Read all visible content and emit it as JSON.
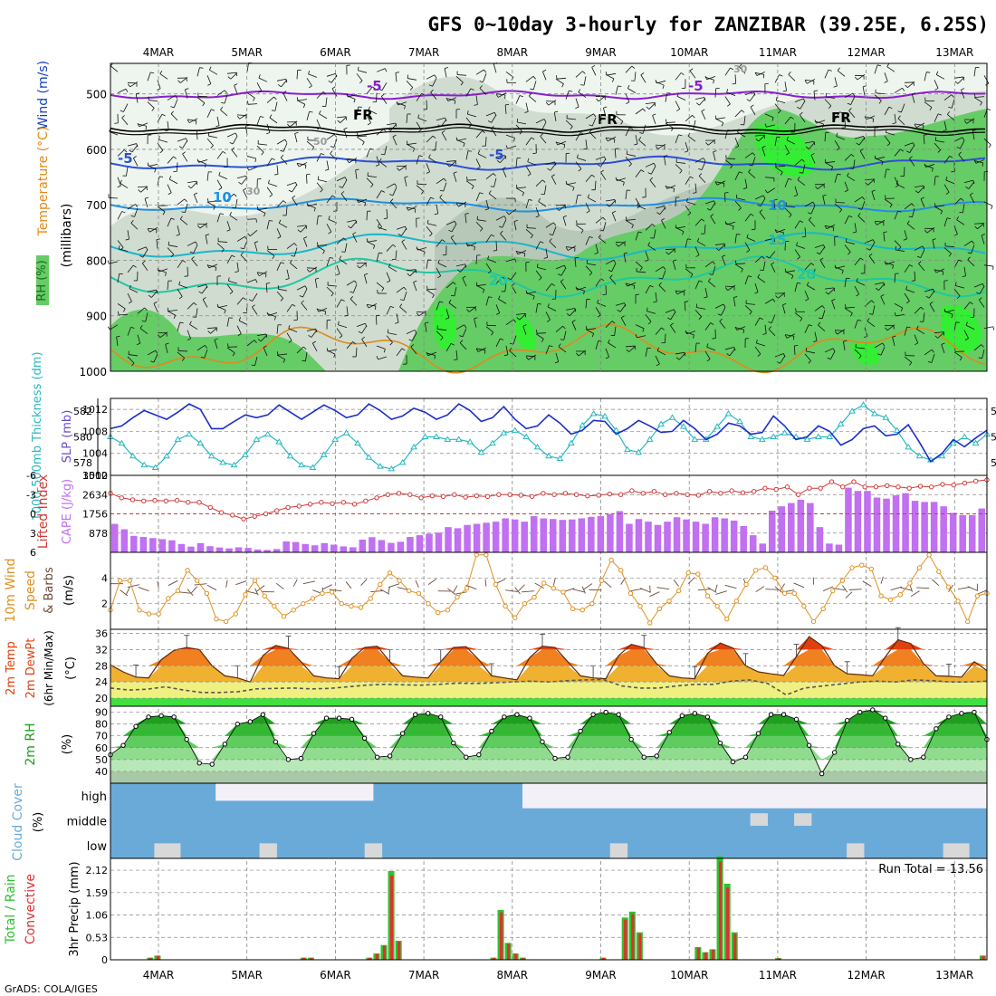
{
  "header": {
    "title": "GFS 0~10day 3-hourly for ZANZIBAR (39.25E, 6.25S)",
    "credit": "GrADS: COLA/IGES"
  },
  "colors": {
    "background": "#ffffff",
    "frame": "#000000",
    "grid": "#888888",
    "rh_light": "#eef5ee",
    "rh_mid": "#d0dcd0",
    "rh_dark": "#b8c8b8",
    "rh_green": "#66cc66",
    "rh_bright": "#33ee33",
    "temp_minus5": "#8a1ecf",
    "temp_fr": "#000000",
    "temp_cold": "#2b4fd6",
    "temp_10": "#1f8fe0",
    "temp_15": "#19b7c8",
    "temp_20": "#1fc8a0",
    "temp_warm": "#e08a1a",
    "slp": "#1b2fc8",
    "thickness": "#28b8c0",
    "cape": "#c070f0",
    "lifted": "#d23a3a",
    "wind10": "#e09020",
    "barb": "#6a4a3a",
    "t2m_hot": "#e04010",
    "t2m_warm": "#f08020",
    "t2m_mild": "#f0b030",
    "t2m_yellow": "#f0f080",
    "t2m_green": "#40e040",
    "dewpt": "#555555",
    "rh2m_dark": "#1aa01a",
    "rh2m_light": "#9fe09f",
    "rh2m_base": "#a8c8a8",
    "cloud": "#6aaad8",
    "cloud_light": "#d8d8d8",
    "cloud_bg": "#f4f0f8",
    "precip_total": "#30c030",
    "precip_conv": "#e03030"
  },
  "x_axis": {
    "dates": [
      "4MAR",
      "5MAR",
      "6MAR",
      "7MAR",
      "8MAR",
      "9MAR",
      "10MAR",
      "11MAR",
      "12MAR",
      "13MAR"
    ]
  },
  "panels": {
    "upper_air": {
      "labels": [
        "RH (%)",
        "Temperature (°C)",
        "Wind (m/s)"
      ],
      "ylabel": "(millibars)",
      "yticks": [
        "500",
        "600",
        "700",
        "800",
        "900",
        "1000"
      ],
      "contour_labels": [
        "-5",
        "-5",
        "FR",
        "FR",
        "FR",
        "-5",
        "-5",
        "10",
        "10",
        "15",
        "20",
        "20",
        "30",
        "30",
        "50"
      ]
    },
    "pressure": {
      "left_label": "1000-500mb Thickness (dm)",
      "right_label": "SLP (mb)",
      "left_ticks": [
        "582",
        "580",
        "578"
      ],
      "right_ticks": [
        "1012",
        "1008",
        "1004",
        "1000"
      ]
    },
    "instability": {
      "left_label": "Lifted Index",
      "right_label": "CAPE (J/kg)",
      "left_ticks": [
        "-6",
        "-3",
        "0",
        "3",
        "6"
      ],
      "right_ticks": [
        "3512",
        "2634",
        "1756",
        "878"
      ]
    },
    "wind10m": {
      "labels": [
        "10m Wind",
        "Speed",
        "& Barbs"
      ],
      "ylabel": "(m/s)",
      "yticks": [
        "4",
        "2"
      ]
    },
    "temperature": {
      "labels": [
        "2m Temp",
        "2m DewPt",
        "(6hr Min/Max)"
      ],
      "ylabel": "(°C)",
      "yticks": [
        "36",
        "32",
        "28",
        "24",
        "20"
      ]
    },
    "humidity": {
      "label": "2m RH",
      "ylabel": "(%)",
      "yticks": [
        "90",
        "80",
        "70",
        "60",
        "50",
        "40"
      ]
    },
    "cloud": {
      "label": "Cloud Cover",
      "ylabel": "(%)",
      "levels": [
        "high",
        "middle",
        "low"
      ]
    },
    "precip": {
      "labels": [
        "Total / Rain",
        "Convective"
      ],
      "ylabel": "3hr Precip (mm)",
      "yticks": [
        "2.12",
        "1.59",
        "1.06",
        "0.53",
        "0"
      ],
      "run_total": "Run Total = 13.56"
    }
  },
  "chart_data": [
    {
      "type": "line",
      "name": "slp",
      "ylim": [
        1000,
        1014
      ],
      "values": [
        1008.5,
        1009.0,
        1010.5,
        1011.8,
        1011.0,
        1010.2,
        1011.5,
        1013.0,
        1012.0,
        1008.5,
        1008.5,
        1009.8,
        1011.0,
        1010.5,
        1011.0,
        1012.8,
        1011.5,
        1010.2,
        1011.5,
        1012.8,
        1011.8,
        1010.5,
        1011.0,
        1013.0,
        1011.8,
        1010.2,
        1010.8,
        1012.2,
        1011.5,
        1010.2,
        1011.0,
        1013.0,
        1011.8,
        1009.8,
        1010.5,
        1012.5,
        1010.2,
        1008.5,
        1009.0,
        1011.0,
        1009.5,
        1007.5,
        1008.2,
        1010.0,
        1009.8,
        1007.5,
        1008.5,
        1010.0,
        1009.0,
        1007.8,
        1008.0,
        1010.0,
        1008.5,
        1006.5,
        1007.5,
        1009.5,
        1009.0,
        1007.5,
        1007.8,
        1010.8,
        1009.0,
        1006.5,
        1007.0,
        1009.0,
        1008.0,
        1005.5,
        1006.5,
        1008.5,
        1009.0,
        1007.2,
        1007.5,
        1009.2,
        1006.0,
        1002.5,
        1004.0,
        1006.5,
        1005.2,
        1006.8,
        1008.2
      ],
      "ylabel": "SLP (mb)"
    },
    {
      "type": "line",
      "name": "thickness",
      "ylim": [
        577,
        583
      ],
      "values": [
        580.0,
        579.5,
        578.5,
        577.8,
        577.6,
        578.5,
        579.8,
        580.2,
        579.5,
        578.5,
        578.0,
        577.8,
        578.6,
        579.8,
        580.2,
        579.6,
        578.5,
        577.8,
        577.6,
        578.6,
        579.8,
        580.3,
        579.5,
        578.4,
        577.7,
        577.5,
        578.0,
        579.2,
        580.0,
        580.0,
        579.8,
        579.8,
        579.6,
        578.8,
        579.5,
        580.3,
        580.5,
        580.0,
        579.2,
        578.5,
        578.3,
        579.5,
        580.9,
        581.8,
        581.6,
        580.5,
        579.0,
        578.8,
        579.8,
        581.0,
        581.5,
        580.8,
        579.8,
        579.8,
        580.8,
        581.8,
        581.2,
        580.0,
        579.8,
        580.0,
        580.3,
        580.0,
        579.8,
        580.0,
        580.0,
        581.0,
        582.0,
        582.5,
        581.8,
        581.5,
        580.5,
        579.2,
        578.5,
        578.2,
        578.5,
        579.5,
        580.0,
        579.5,
        580.2
      ]
    },
    {
      "type": "bar",
      "name": "cape",
      "ylim": [
        0,
        3512
      ],
      "values": [
        1300,
        1050,
        750,
        700,
        650,
        600,
        550,
        380,
        260,
        420,
        280,
        220,
        180,
        230,
        200,
        130,
        110,
        150,
        500,
        470,
        380,
        320,
        420,
        350,
        270,
        230,
        580,
        690,
        560,
        430,
        480,
        700,
        780,
        850,
        900,
        1150,
        1100,
        1250,
        1300,
        1350,
        1400,
        1550,
        1500,
        1400,
        1650,
        1550,
        1520,
        1480,
        1500,
        1550,
        1620,
        1650,
        1750,
        1880,
        1300,
        1520,
        1400,
        1250,
        1400,
        1600,
        1500,
        1400,
        1300,
        1600,
        1550,
        1450,
        1200,
        780,
        400,
        1900,
        2100,
        2250,
        2400,
        2250,
        1150,
        400,
        350,
        2950,
        2800,
        2800,
        2500,
        2450,
        2600,
        2700,
        2350,
        2300,
        2300,
        2100,
        1800,
        1700,
        1700,
        2000
      ]
    },
    {
      "type": "line",
      "name": "lifted_index",
      "ylim": [
        -6,
        6
      ],
      "values": [
        -3.2,
        -2.5,
        -2.2,
        -2.0,
        -2.1,
        -2.0,
        -2.1,
        -1.8,
        -1.8,
        -1.0,
        -0.2,
        0.2,
        0.8,
        0.4,
        0.0,
        -0.5,
        -1.0,
        -1.2,
        -1.5,
        -1.8,
        -1.6,
        -1.8,
        -1.5,
        -2.0,
        -2.5,
        -3.0,
        -3.2,
        -3.0,
        -2.5,
        -2.8,
        -2.7,
        -3.0,
        -2.6,
        -2.8,
        -2.7,
        -3.0,
        -3.0,
        -2.9,
        -2.7,
        -3.2,
        -3.0,
        -3.2,
        -3.0,
        -2.8,
        -2.9,
        -3.1,
        -3.0,
        -3.6,
        -3.2,
        -3.5,
        -3.0,
        -3.2,
        -3.0,
        -2.9,
        -3.5,
        -3.2,
        -3.6,
        -3.3,
        -3.5,
        -4.0,
        -3.8,
        -4.2,
        -3.0,
        -4.0,
        -4.0,
        -5.0,
        -4.2,
        -5.0,
        -4.2,
        -4.2,
        -4.4,
        -4.2,
        -4.0,
        -4.3,
        -4.2,
        -4.6,
        -4.5,
        -4.8,
        -5.1,
        -5.3
      ]
    },
    {
      "type": "line",
      "name": "wind10m_speed",
      "ylim": [
        0,
        6
      ],
      "values": [
        1.5,
        3.8,
        3.8,
        1.5,
        1.2,
        1.2,
        2.4,
        3.0,
        4.6,
        3.8,
        2.8,
        0.8,
        0.6,
        1.2,
        2.7,
        3.8,
        2.6,
        1.8,
        1.0,
        1.5,
        2.0,
        2.4,
        2.8,
        2.9,
        2.0,
        1.8,
        1.7,
        2.4,
        3.5,
        4.4,
        3.8,
        3.0,
        2.8,
        2.0,
        1.3,
        1.5,
        2.5,
        3.2,
        5.8,
        5.8,
        3.5,
        1.8,
        0.9,
        2.0,
        2.5,
        3.6,
        3.2,
        2.9,
        1.6,
        1.5,
        2.0,
        3.8,
        5.4,
        4.6,
        2.8,
        1.8,
        0.5,
        1.6,
        2.2,
        3.0,
        4.4,
        4.3,
        2.6,
        1.8,
        0.8,
        2.2,
        3.5,
        4.6,
        4.8,
        4.0,
        2.8,
        2.8,
        1.8,
        0.6,
        1.6,
        3.0,
        3.8,
        4.8,
        5.0,
        4.7,
        2.6,
        2.3,
        2.7,
        3.6,
        4.8,
        5.8,
        4.5,
        3.3,
        2.2,
        0.6,
        2.6,
        2.8
      ]
    },
    {
      "type": "area",
      "name": "t2m",
      "ylim": [
        18,
        37
      ],
      "values": [
        28.2,
        26.5,
        25.2,
        25.0,
        29.5,
        31.8,
        32.5,
        32.0,
        28.0,
        25.5,
        25.0,
        24.0,
        30.5,
        33.0,
        32.3,
        29.0,
        25.5,
        25.0,
        24.8,
        29.8,
        32.5,
        32.8,
        29.0,
        25.5,
        25.2,
        25.0,
        29.0,
        32.5,
        32.7,
        29.5,
        25.5,
        25.0,
        24.5,
        30.0,
        32.8,
        32.5,
        29.0,
        25.5,
        25.0,
        24.8,
        30.5,
        33.3,
        32.5,
        28.5,
        25.5,
        25.0,
        24.8,
        31.0,
        33.6,
        32.4,
        28.0,
        26.5,
        26.0,
        25.6,
        30.3,
        35.2,
        33.0,
        28.0,
        26.0,
        25.8,
        25.5,
        30.2,
        34.4,
        33.5,
        28.5,
        25.5,
        25.4,
        25.2,
        29.0,
        26.8
      ]
    },
    {
      "type": "line",
      "name": "dewpoint_2m",
      "ylim": [
        18,
        37
      ],
      "values": [
        22.5,
        22.0,
        22.2,
        22.8,
        22.0,
        21.4,
        21.4,
        21.6,
        22.3,
        22.4,
        22.5,
        22.3,
        22.4,
        22.8,
        23.2,
        23.4,
        23.3,
        23.2,
        23.4,
        23.7,
        23.6,
        23.8,
        24.0,
        24.2,
        24.0,
        24.3,
        24.5,
        24.6,
        23.0,
        22.5,
        22.5,
        23.0,
        23.4,
        23.4,
        24.2,
        24.5,
        23.6,
        20.8,
        22.5,
        23.0,
        23.5,
        24.0,
        24.2,
        24.0,
        24.5,
        24.3,
        24.0,
        24.0,
        24.2
      ]
    },
    {
      "type": "area",
      "name": "rh2m",
      "ylim": [
        30,
        95
      ],
      "values": [
        54,
        62,
        78,
        86,
        87,
        86,
        67,
        47,
        46,
        63,
        80,
        82,
        88,
        65,
        50,
        51,
        72,
        85,
        85,
        84,
        68,
        52,
        53,
        72,
        88,
        89,
        86,
        64,
        52,
        54,
        74,
        86,
        88,
        85,
        65,
        51,
        52,
        74,
        88,
        90,
        88,
        67,
        52,
        53,
        73,
        87,
        89,
        86,
        64,
        48,
        52,
        72,
        88,
        88,
        84,
        62,
        38,
        56,
        83,
        90,
        92,
        85,
        63,
        50,
        52,
        76,
        86,
        89,
        90,
        67
      ]
    },
    {
      "type": "bar",
      "name": "precip_3hr_total",
      "ylim": [
        0,
        2.4
      ],
      "values": [
        0,
        0,
        0,
        0,
        0,
        0.05,
        0.1,
        0,
        0,
        0,
        0,
        0,
        0,
        0,
        0,
        0,
        0,
        0,
        0,
        0,
        0,
        0,
        0,
        0,
        0,
        0,
        0.05,
        0.05,
        0,
        0,
        0,
        0,
        0,
        0,
        0,
        0.05,
        0.15,
        0.35,
        2.1,
        0.45,
        0,
        0,
        0,
        0,
        0,
        0,
        0,
        0,
        0,
        0,
        0,
        0,
        0.05,
        1.18,
        0.4,
        0.15,
        0.05,
        0,
        0,
        0,
        0,
        0,
        0,
        0,
        0,
        0,
        0,
        0.05,
        0,
        0,
        1.0,
        1.14,
        0.65,
        0,
        0,
        0,
        0,
        0,
        0,
        0,
        0.3,
        0.18,
        0.25,
        2.45,
        1.8,
        0.65,
        0,
        0,
        0,
        0,
        0,
        0.04,
        0,
        0,
        0,
        0,
        0,
        0,
        0,
        0,
        0,
        0,
        0,
        0,
        0,
        0,
        0,
        0,
        0,
        0,
        0,
        0,
        0,
        0,
        0,
        0,
        0,
        0,
        0,
        0.1
      ]
    }
  ]
}
